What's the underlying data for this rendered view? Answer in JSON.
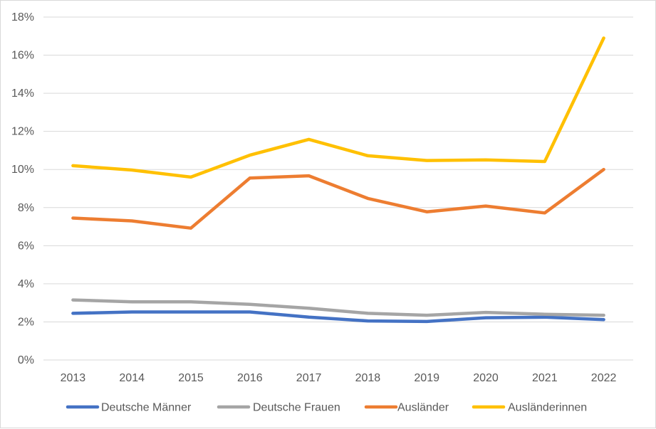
{
  "chart_data": {
    "type": "line",
    "title": "",
    "xlabel": "",
    "ylabel": "",
    "categories": [
      "2013",
      "2014",
      "2015",
      "2016",
      "2017",
      "2018",
      "2019",
      "2020",
      "2021",
      "2022"
    ],
    "ylim": [
      0,
      18
    ],
    "yticks": [
      0,
      2,
      4,
      6,
      8,
      10,
      12,
      14,
      16,
      18
    ],
    "ytick_labels": [
      "0%",
      "2%",
      "4%",
      "6%",
      "8%",
      "10%",
      "12%",
      "14%",
      "16%",
      "18%"
    ],
    "grid": "horizontal",
    "legend_position": "bottom",
    "series": [
      {
        "name": "Deutsche Männer",
        "color": "#4472C4",
        "values": [
          2.45,
          2.52,
          2.52,
          2.52,
          2.25,
          2.05,
          2.02,
          2.22,
          2.25,
          2.12
        ]
      },
      {
        "name": "Deutsche Frauen",
        "color": "#A5A5A5",
        "values": [
          3.15,
          3.05,
          3.05,
          2.92,
          2.72,
          2.45,
          2.35,
          2.5,
          2.4,
          2.35
        ]
      },
      {
        "name": "Ausländer",
        "color": "#ED7D31",
        "values": [
          7.45,
          7.3,
          6.92,
          9.55,
          9.67,
          8.48,
          7.78,
          8.08,
          7.72,
          10.0
        ]
      },
      {
        "name": "Ausländerinnen",
        "color": "#FFC000",
        "values": [
          10.2,
          9.97,
          9.6,
          10.75,
          11.58,
          10.72,
          10.47,
          10.5,
          10.42,
          16.9
        ]
      }
    ]
  }
}
